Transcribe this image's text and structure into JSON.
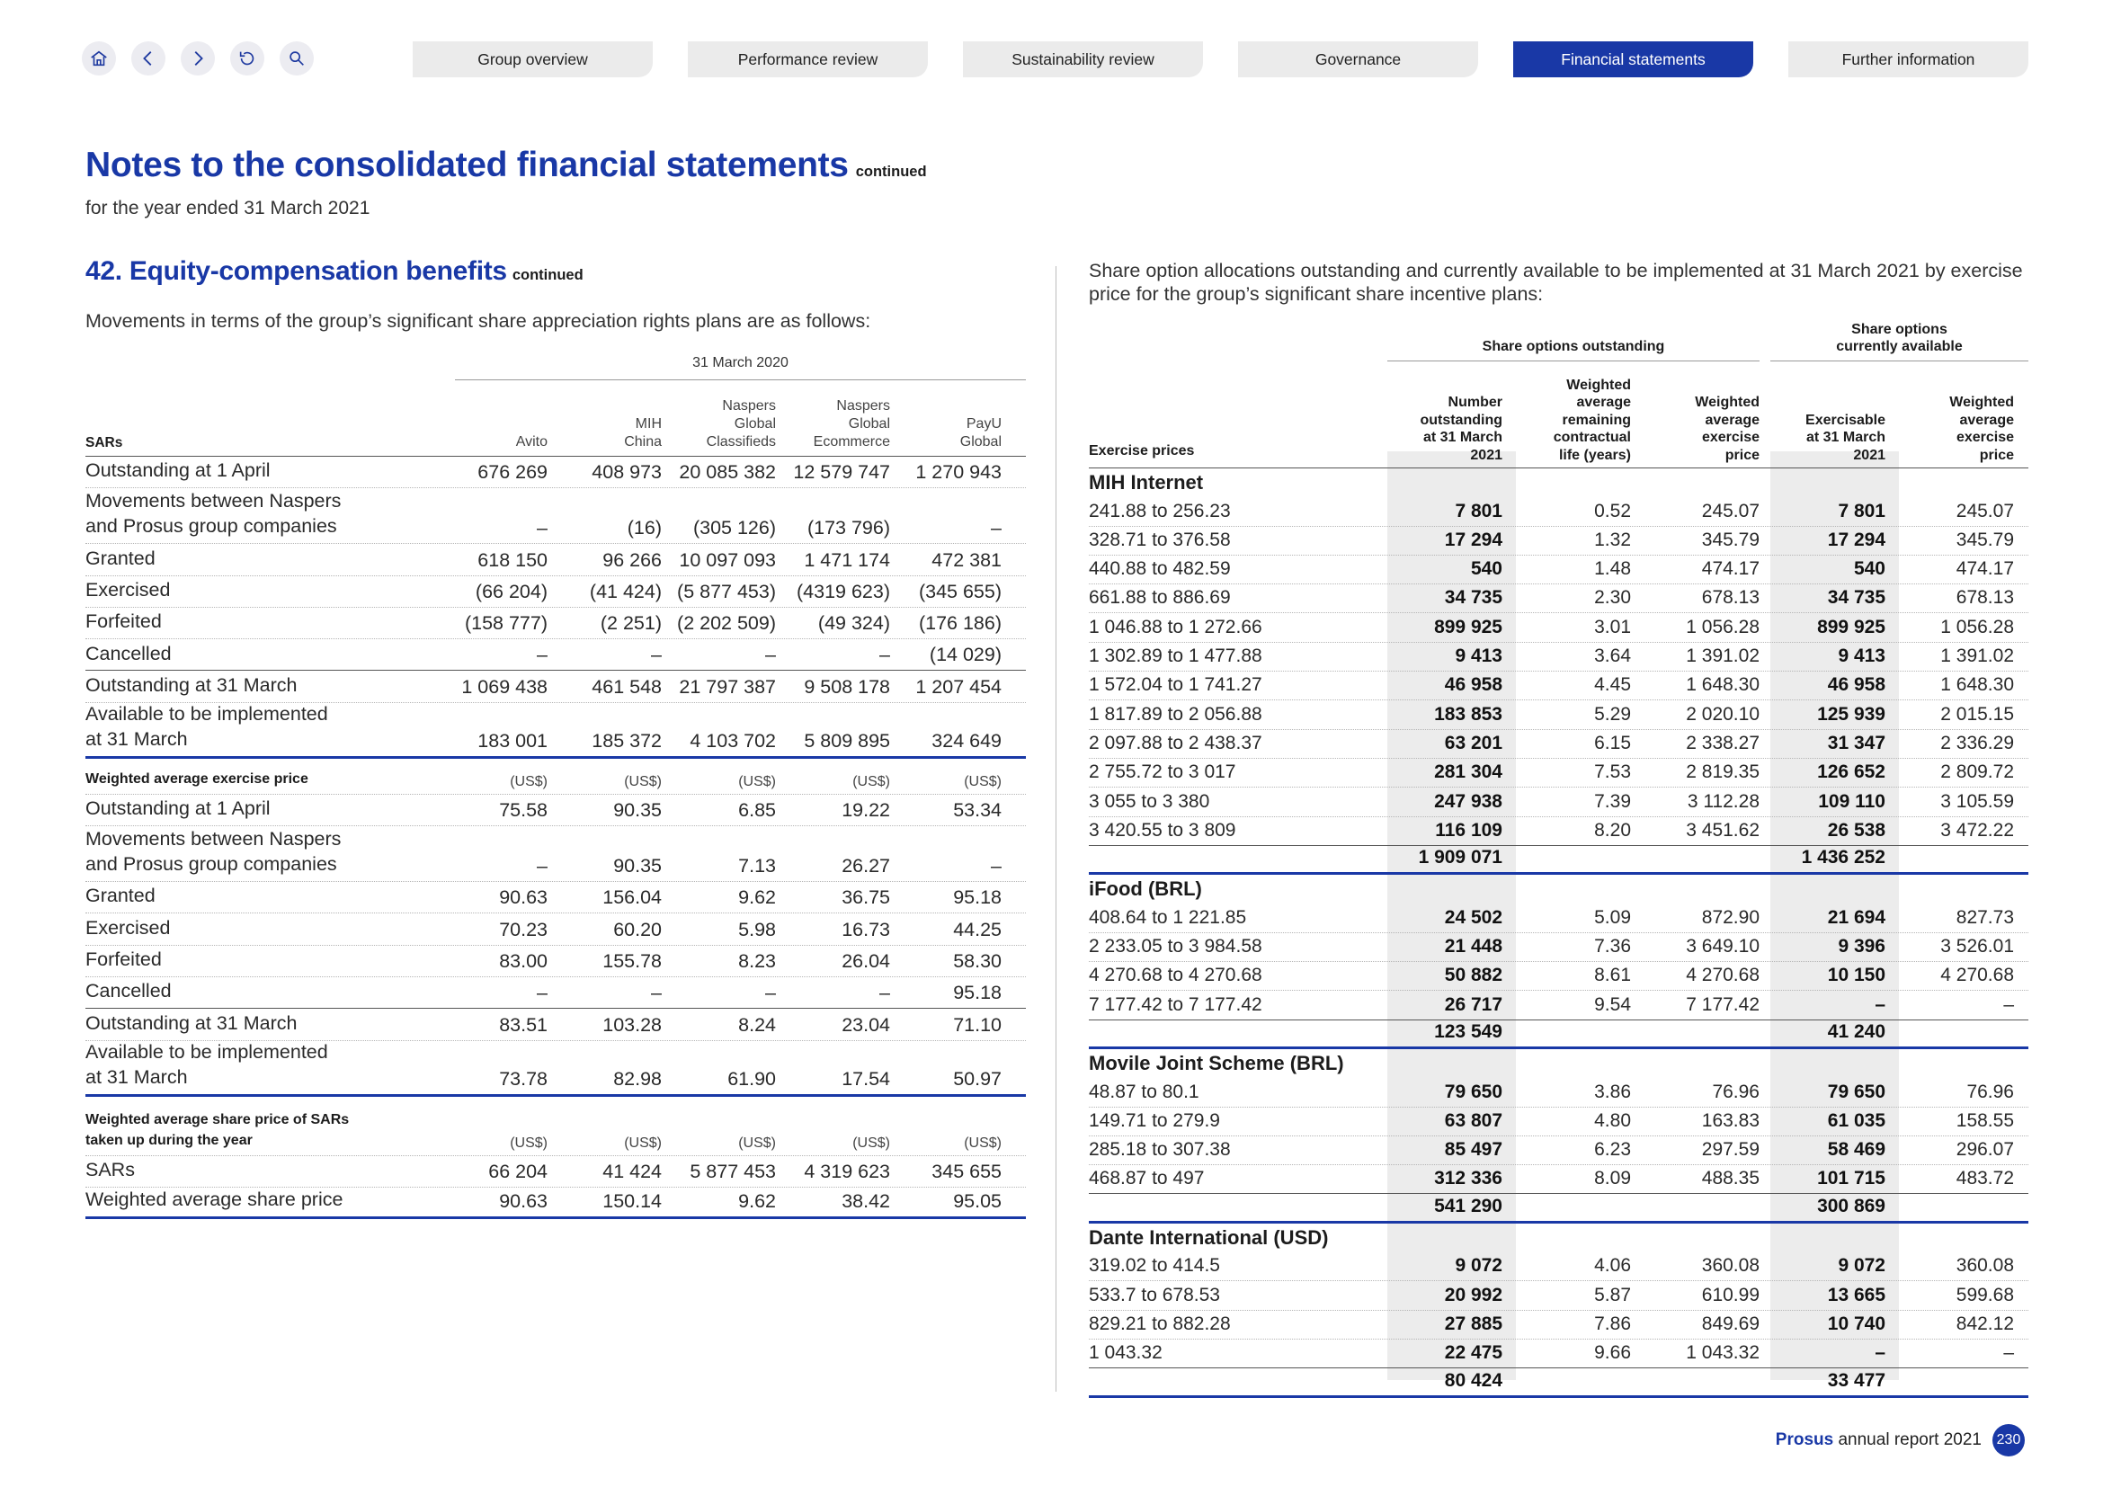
{
  "nav": {
    "icons": [
      "home-icon",
      "back-icon",
      "forward-icon",
      "undo-icon",
      "search-icon"
    ],
    "tabs": [
      "Group overview",
      "Performance review",
      "Sustainability review",
      "Governance",
      "Financial statements",
      "Further information"
    ],
    "active_tab": "Financial statements"
  },
  "header": {
    "title": "Notes to the consolidated financial statements",
    "continued": "continued",
    "subtitle": "for the year ended 31 March 2021"
  },
  "section": {
    "title": "42. Equity-compensation benefits",
    "continued": "continued",
    "intro": "Movements in terms of the group’s significant share appreciation rights plans are as follows:"
  },
  "left_table": {
    "period": "31 March 2020",
    "first_col_header": "SARs",
    "columns": [
      "Avito",
      "MIH China",
      "Naspers Global Classifieds",
      "Naspers Global Ecommerce",
      "PayU Global"
    ],
    "col_lines": [
      [
        "Avito"
      ],
      [
        "MIH",
        "China"
      ],
      [
        "Naspers",
        "Global",
        "Classifieds"
      ],
      [
        "Naspers",
        "Global",
        "Ecommerce"
      ],
      [
        "PayU",
        "Global"
      ]
    ],
    "rows": [
      {
        "label": "Outstanding at 1 April",
        "values": [
          "676 269",
          "408 973",
          "20 085 382",
          "12 579 747",
          "1 270 943"
        ]
      },
      {
        "label": "Movements between Naspers\nand Prosus group companies",
        "values": [
          "–",
          "(16)",
          "(305 126)",
          "(173 796)",
          "–"
        ]
      },
      {
        "label": "Granted",
        "values": [
          "618 150",
          "96 266",
          "10 097 093",
          "1 471 174",
          "472 381"
        ]
      },
      {
        "label": "Exercised",
        "values": [
          "(66 204)",
          "(41 424)",
          "(5 877 453)",
          "(4319 623)",
          "(345 655)"
        ]
      },
      {
        "label": "Forfeited",
        "values": [
          "(158 777)",
          "(2 251)",
          "(2 202 509)",
          "(49 324)",
          "(176 186)"
        ]
      },
      {
        "label": "Cancelled",
        "values": [
          "–",
          "–",
          "–",
          "–",
          "(14 029)"
        ]
      },
      {
        "label": "Outstanding at 31 March",
        "values": [
          "1 069 438",
          "461 548",
          "21 797 387",
          "9 508 178",
          "1 207 454"
        ]
      },
      {
        "label": "Available to be implemented\nat 31 March",
        "values": [
          "183 001",
          "185 372",
          "4 103 702",
          "5 809 895",
          "324 649"
        ]
      }
    ],
    "wae_header": "Weighted average exercise price",
    "unit": "(US$)",
    "wae_rows": [
      {
        "label": "Outstanding at 1 April",
        "values": [
          "75.58",
          "90.35",
          "6.85",
          "19.22",
          "53.34"
        ]
      },
      {
        "label": "Movements between Naspers\nand Prosus group companies",
        "values": [
          "–",
          "90.35",
          "7.13",
          "26.27",
          "–"
        ]
      },
      {
        "label": "Granted",
        "values": [
          "90.63",
          "156.04",
          "9.62",
          "36.75",
          "95.18"
        ]
      },
      {
        "label": "Exercised",
        "values": [
          "70.23",
          "60.20",
          "5.98",
          "16.73",
          "44.25"
        ]
      },
      {
        "label": "Forfeited",
        "values": [
          "83.00",
          "155.78",
          "8.23",
          "26.04",
          "58.30"
        ]
      },
      {
        "label": "Cancelled",
        "values": [
          "–",
          "–",
          "–",
          "–",
          "95.18"
        ]
      },
      {
        "label": "Outstanding at 31 March",
        "values": [
          "83.51",
          "103.28",
          "8.24",
          "23.04",
          "71.10"
        ]
      },
      {
        "label": "Available to be implemented\nat 31 March",
        "values": [
          "73.78",
          "82.98",
          "61.90",
          "17.54",
          "50.97"
        ]
      }
    ],
    "wasp_header": "Weighted average share price of SARs\ntaken up during the year",
    "wasp_rows": [
      {
        "label": "SARs",
        "values": [
          "66 204",
          "41 424",
          "5 877 453",
          "4 319 623",
          "345 655"
        ]
      },
      {
        "label": "Weighted average share price",
        "values": [
          "90.63",
          "150.14",
          "9.62",
          "38.42",
          "95.05"
        ]
      }
    ]
  },
  "right_table": {
    "intro": "Share option allocations outstanding and currently available to be implemented at 31 March 2021 by exercise price for the group’s significant share incentive plans:",
    "group_outstanding": "Share options outstanding",
    "group_available": "Share options\ncurrently available",
    "headers": [
      "Exercise prices",
      "Number\noutstanding\nat 31 March\n2021",
      "Weighted\naverage\nremaining\ncontractual\nlife (years)",
      "Weighted\naverage\nexercise\nprice",
      "Exercisable\nat 31 March\n2021",
      "Weighted\naverage\nexercise\nprice"
    ],
    "groups": [
      {
        "name": "MIH Internet",
        "rows": [
          [
            "241.88 to 256.23",
            "7 801",
            "0.52",
            "245.07",
            "7 801",
            "245.07"
          ],
          [
            "328.71 to 376.58",
            "17 294",
            "1.32",
            "345.79",
            "17 294",
            "345.79"
          ],
          [
            "440.88 to 482.59",
            "540",
            "1.48",
            "474.17",
            "540",
            "474.17"
          ],
          [
            "661.88 to 886.69",
            "34 735",
            "2.30",
            "678.13",
            "34 735",
            "678.13"
          ],
          [
            "1 046.88 to 1 272.66",
            "899 925",
            "3.01",
            "1 056.28",
            "899 925",
            "1 056.28"
          ],
          [
            "1 302.89 to 1 477.88",
            "9 413",
            "3.64",
            "1 391.02",
            "9 413",
            "1 391.02"
          ],
          [
            "1 572.04 to 1 741.27",
            "46 958",
            "4.45",
            "1 648.30",
            "46 958",
            "1 648.30"
          ],
          [
            "1 817.89 to 2 056.88",
            "183 853",
            "5.29",
            "2 020.10",
            "125 939",
            "2 015.15"
          ],
          [
            "2 097.88 to 2 438.37",
            "63 201",
            "6.15",
            "2 338.27",
            "31 347",
            "2 336.29"
          ],
          [
            "2 755.72 to 3 017",
            "281 304",
            "7.53",
            "2 819.35",
            "126 652",
            "2 809.72"
          ],
          [
            "3 055 to 3 380",
            "247 938",
            "7.39",
            "3 112.28",
            "109 110",
            "3 105.59"
          ],
          [
            "3 420.55 to 3 809",
            "116 109",
            "8.20",
            "3 451.62",
            "26 538",
            "3 472.22"
          ]
        ],
        "total_outstanding": "1 909 071",
        "total_exercisable": "1 436 252"
      },
      {
        "name": "iFood (BRL)",
        "rows": [
          [
            "408.64 to 1 221.85",
            "24 502",
            "5.09",
            "872.90",
            "21 694",
            "827.73"
          ],
          [
            "2 233.05 to 3 984.58",
            "21 448",
            "7.36",
            "3 649.10",
            "9 396",
            "3 526.01"
          ],
          [
            "4 270.68 to 4 270.68",
            "50 882",
            "8.61",
            "4 270.68",
            "10 150",
            "4 270.68"
          ],
          [
            "7 177.42 to 7 177.42",
            "26 717",
            "9.54",
            "7 177.42",
            "–",
            "–"
          ]
        ],
        "total_outstanding": "123 549",
        "total_exercisable": "41 240"
      },
      {
        "name": "Movile Joint Scheme (BRL)",
        "rows": [
          [
            "48.87 to 80.1",
            "79 650",
            "3.86",
            "76.96",
            "79 650",
            "76.96"
          ],
          [
            "149.71 to 279.9",
            "63 807",
            "4.80",
            "163.83",
            "61 035",
            "158.55"
          ],
          [
            "285.18 to 307.38",
            "85 497",
            "6.23",
            "297.59",
            "58 469",
            "296.07"
          ],
          [
            "468.87 to 497",
            "312 336",
            "8.09",
            "488.35",
            "101 715",
            "483.72"
          ]
        ],
        "total_outstanding": "541 290",
        "total_exercisable": "300 869"
      },
      {
        "name": "Dante International (USD)",
        "rows": [
          [
            "319.02 to 414.5",
            "9 072",
            "4.06",
            "360.08",
            "9 072",
            "360.08"
          ],
          [
            "533.7 to 678.53",
            "20 992",
            "5.87",
            "610.99",
            "13 665",
            "599.68"
          ],
          [
            "829.21 to 882.28",
            "27 885",
            "7.86",
            "849.69",
            "10 740",
            "842.12"
          ],
          [
            "1 043.32",
            "22 475",
            "9.66",
            "1 043.32",
            "–",
            "–"
          ]
        ],
        "total_outstanding": "80 424",
        "total_exercisable": "33 477"
      }
    ]
  },
  "footer": {
    "brand": "Prosus",
    "text": "annual report 2021",
    "page": "230"
  },
  "colors": {
    "accent": "#1938a6",
    "tab_bg": "#ebebeb",
    "shade": "#ececec"
  }
}
